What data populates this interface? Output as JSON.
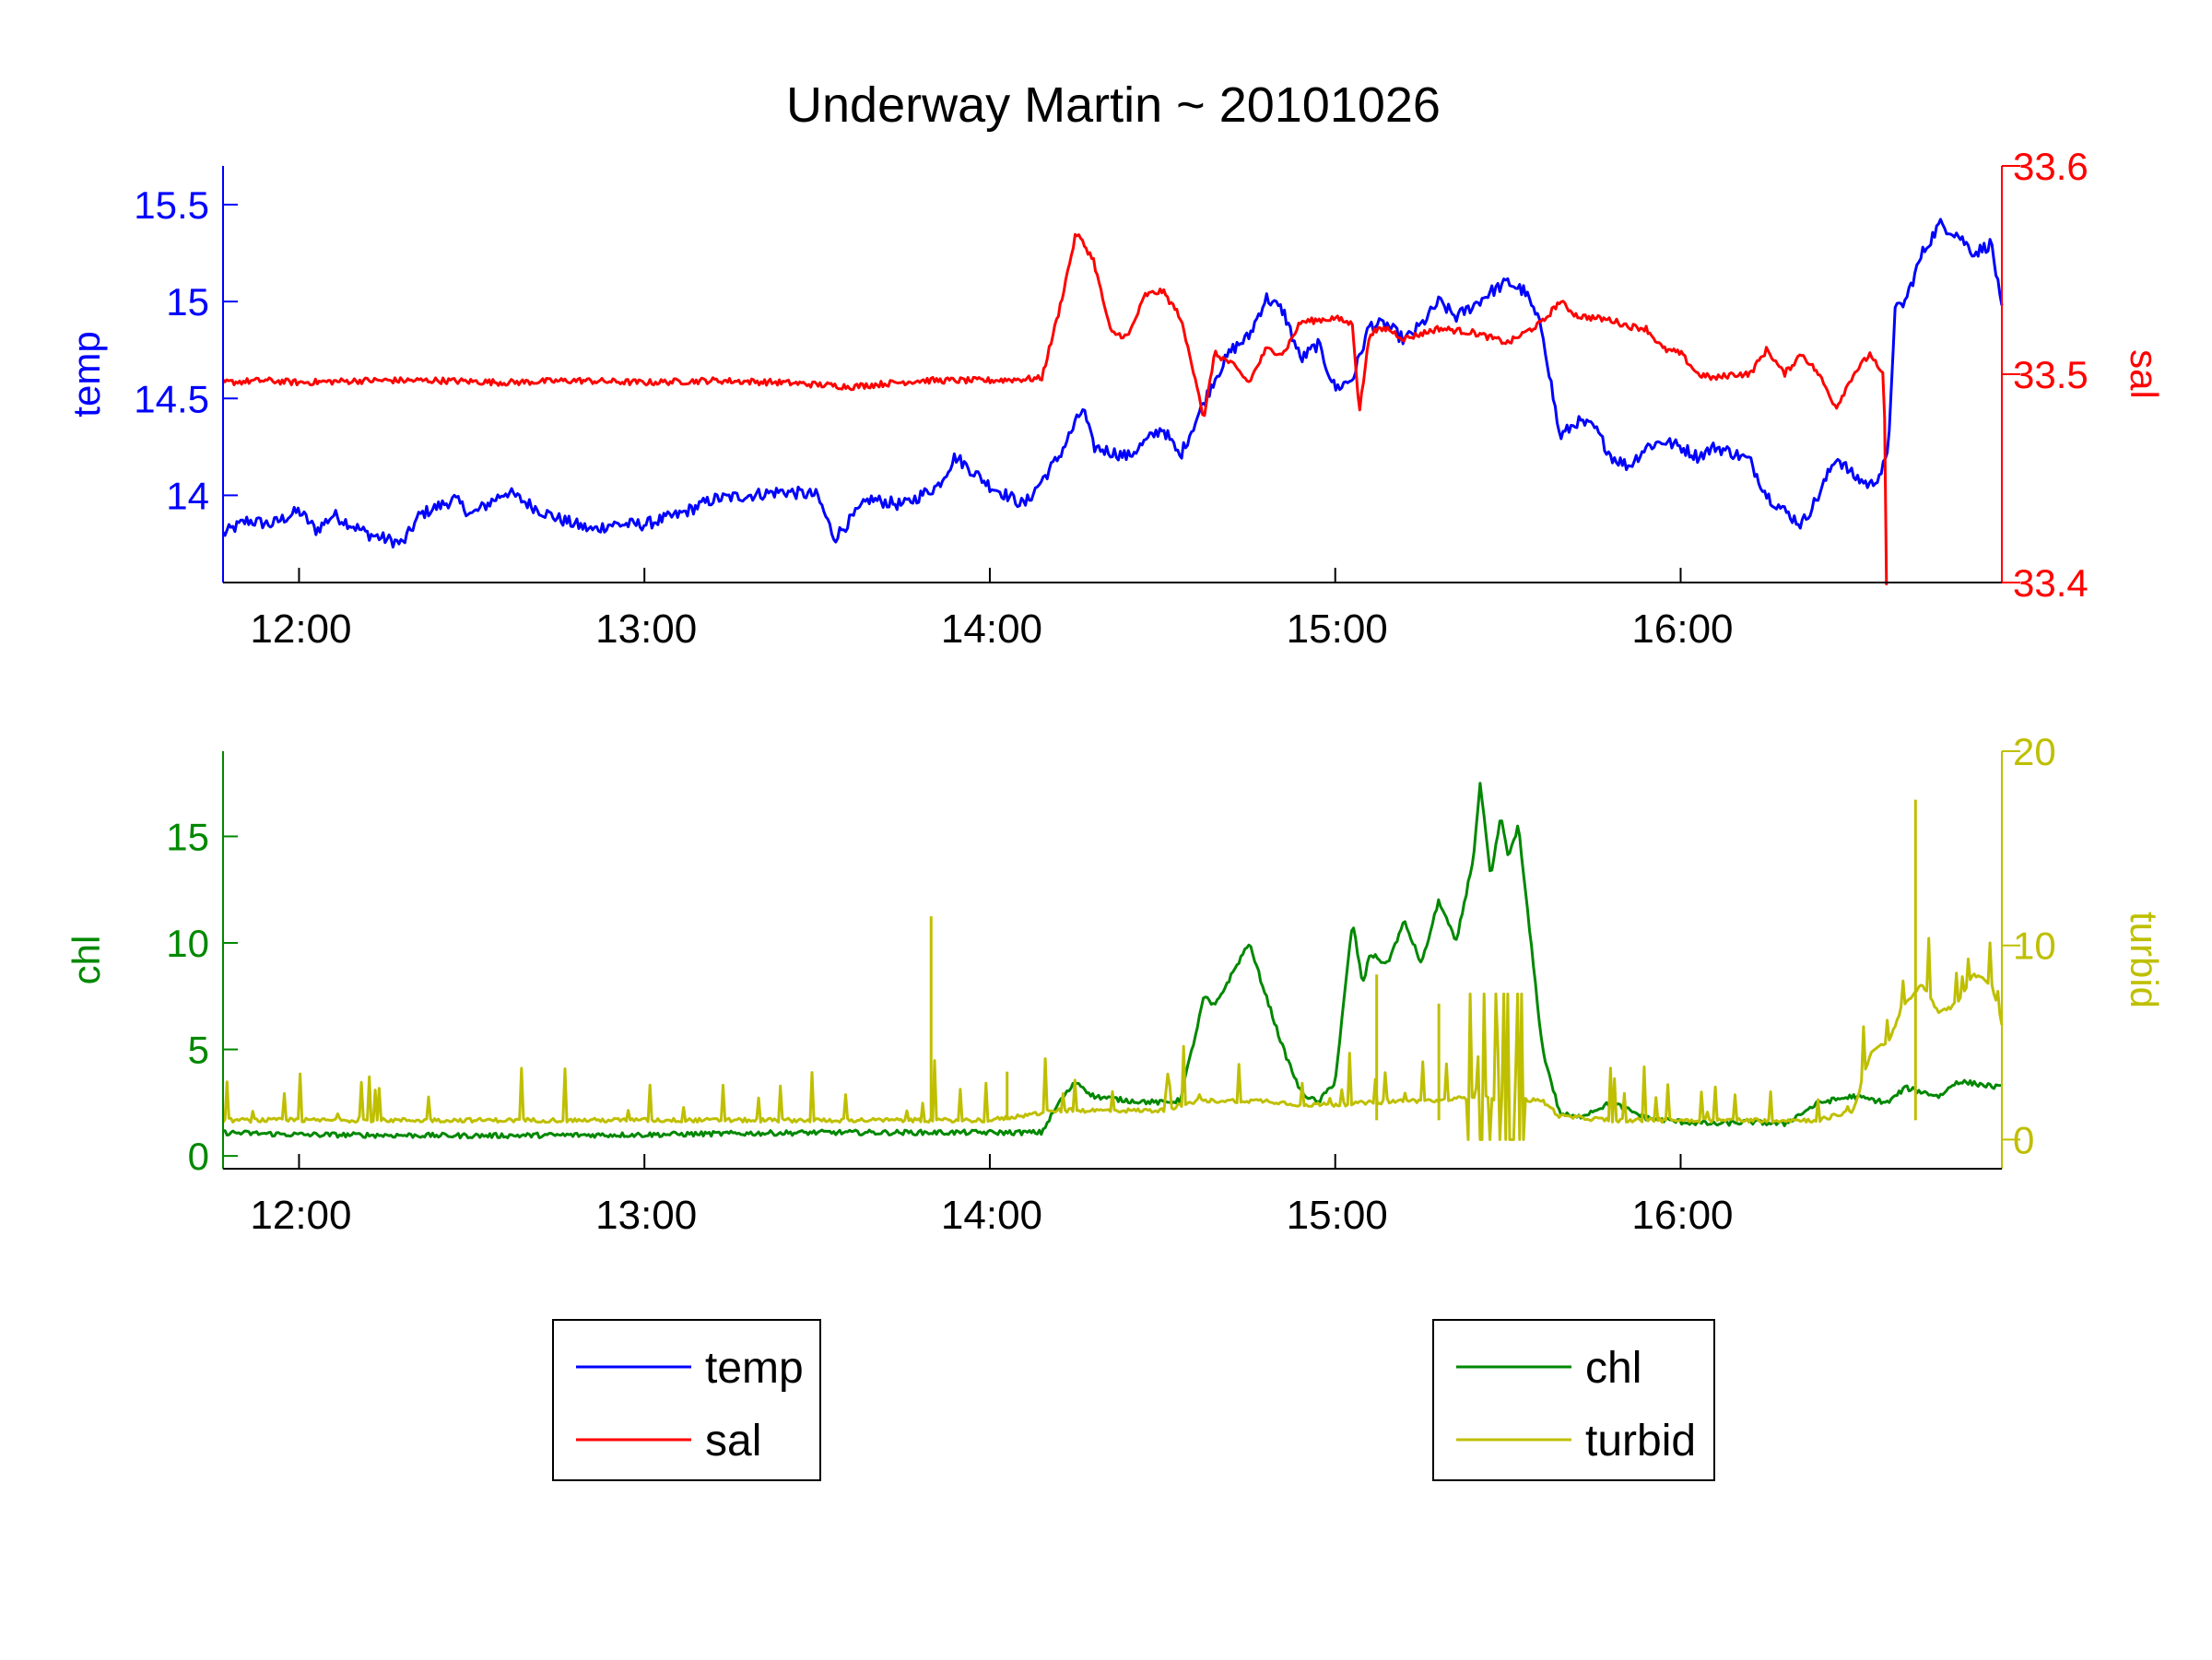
{
  "figure": {
    "title": "Underway Martin ~ 20101026"
  },
  "chart_data": [
    {
      "type": "line",
      "x_tick_labels": [
        "12:00",
        "13:00",
        "14:00",
        "15:00",
        "16:00"
      ],
      "x_ticks": [
        12.0,
        13.0,
        14.0,
        15.0,
        16.0
      ],
      "xlim": [
        11.78,
        16.93
      ],
      "left_axis": {
        "label": "temp",
        "color": "#0000ff",
        "ylim": [
          13.55,
          15.7
        ],
        "ticks": [
          14,
          14.5,
          15,
          15.5
        ],
        "tick_labels": [
          "14",
          "14.5",
          "15",
          "15.5"
        ]
      },
      "right_axis": {
        "label": "sal",
        "color": "#ff0000",
        "ylim": [
          33.4,
          33.6
        ],
        "ticks": [
          33.4,
          33.5,
          33.6
        ],
        "tick_labels": [
          "33.4",
          "33.5",
          "33.6"
        ]
      },
      "series": [
        {
          "name": "temp",
          "axis": "left",
          "color": "#0000ff",
          "x": [
            11.78,
            11.85,
            11.92,
            12.0,
            12.05,
            12.1,
            12.2,
            12.3,
            12.35,
            12.45,
            12.5,
            12.6,
            12.7,
            12.75,
            12.85,
            12.9,
            13.0,
            13.1,
            13.2,
            13.3,
            13.4,
            13.5,
            13.55,
            13.65,
            13.75,
            13.85,
            13.9,
            14.0,
            14.1,
            14.2,
            14.27,
            14.3,
            14.4,
            14.5,
            14.55,
            14.6,
            14.65,
            14.7,
            14.75,
            14.8,
            14.85,
            14.9,
            14.95,
            15.0,
            15.05,
            15.1,
            15.15,
            15.2,
            15.25,
            15.3,
            15.35,
            15.4,
            15.45,
            15.5,
            15.55,
            15.6,
            15.65,
            15.7,
            15.75,
            15.8,
            15.85,
            15.9,
            15.95,
            16.0,
            16.05,
            16.1,
            16.15,
            16.2,
            16.25,
            16.3,
            16.35,
            16.4,
            16.45,
            16.5,
            16.55,
            16.58,
            16.6,
            16.62,
            16.65,
            16.7,
            16.75,
            16.8,
            16.85,
            16.9,
            16.93
          ],
          "values": [
            13.8,
            13.87,
            13.85,
            13.92,
            13.82,
            13.9,
            13.8,
            13.75,
            13.9,
            13.98,
            13.9,
            14.02,
            13.92,
            13.88,
            13.82,
            13.85,
            13.85,
            13.9,
            13.98,
            14.0,
            14.02,
            14.0,
            13.78,
            13.98,
            13.95,
            14.05,
            14.2,
            14.05,
            13.95,
            14.2,
            14.45,
            14.25,
            14.2,
            14.35,
            14.2,
            14.4,
            14.6,
            14.75,
            14.82,
            15.02,
            14.95,
            14.7,
            14.78,
            14.55,
            14.6,
            14.88,
            14.88,
            14.8,
            14.88,
            15.0,
            14.92,
            14.98,
            15.05,
            15.1,
            15.05,
            14.85,
            14.3,
            14.38,
            14.35,
            14.2,
            14.15,
            14.25,
            14.28,
            14.25,
            14.2,
            14.25,
            14.22,
            14.18,
            14.0,
            13.92,
            13.85,
            14.0,
            14.2,
            14.1,
            14.05,
            14.12,
            14.2,
            14.95,
            15.0,
            15.25,
            15.4,
            15.35,
            15.25,
            15.3,
            14.95
          ]
        },
        {
          "name": "sal",
          "axis": "right",
          "color": "#ff0000",
          "x": [
            11.78,
            11.9,
            12.0,
            12.2,
            12.4,
            12.6,
            12.8,
            13.0,
            13.2,
            13.4,
            13.6,
            13.8,
            14.0,
            14.15,
            14.2,
            14.25,
            14.3,
            14.35,
            14.4,
            14.45,
            14.5,
            14.55,
            14.6,
            14.62,
            14.65,
            14.7,
            14.75,
            14.8,
            14.85,
            14.9,
            14.95,
            15.0,
            15.05,
            15.07,
            15.1,
            15.15,
            15.2,
            15.3,
            15.4,
            15.5,
            15.6,
            15.65,
            15.7,
            15.8,
            15.85,
            15.9,
            15.95,
            16.0,
            16.05,
            16.1,
            16.15,
            16.2,
            16.25,
            16.3,
            16.35,
            16.4,
            16.45,
            16.5,
            16.55,
            16.58,
            16.59,
            16.593,
            16.596
          ],
          "values": [
            33.496,
            33.497,
            33.496,
            33.497,
            33.497,
            33.496,
            33.497,
            33.496,
            33.497,
            33.496,
            33.494,
            33.497,
            33.497,
            33.498,
            33.53,
            33.568,
            33.555,
            33.52,
            33.518,
            33.538,
            33.54,
            33.528,
            33.495,
            33.478,
            33.51,
            33.505,
            33.496,
            33.512,
            33.51,
            33.525,
            33.526,
            33.527,
            33.524,
            33.482,
            33.52,
            33.522,
            33.517,
            33.522,
            33.52,
            33.515,
            33.525,
            33.535,
            33.528,
            33.526,
            33.523,
            33.522,
            33.512,
            33.51,
            33.5,
            33.498,
            33.5,
            33.5,
            33.512,
            33.5,
            33.51,
            33.5,
            33.484,
            33.5,
            33.51,
            33.5,
            33.5,
            33.4,
            33.4
          ]
        }
      ]
    },
    {
      "type": "line",
      "x_tick_labels": [
        "12:00",
        "13:00",
        "14:00",
        "15:00",
        "16:00"
      ],
      "x_ticks": [
        12.0,
        13.0,
        14.0,
        15.0,
        16.0
      ],
      "xlim": [
        11.78,
        16.93
      ],
      "left_axis": {
        "label": "chl",
        "color": "#008800",
        "ylim": [
          -0.6,
          19.0
        ],
        "ticks": [
          0,
          5,
          10,
          15
        ],
        "tick_labels": [
          "0",
          "5",
          "10",
          "15"
        ]
      },
      "right_axis": {
        "label": "turbid",
        "color": "#bfbf00",
        "ylim": [
          -1.5,
          20.0
        ],
        "ticks": [
          0,
          10,
          20
        ],
        "tick_labels": [
          "0",
          "10",
          "20"
        ]
      },
      "series": [
        {
          "name": "chl",
          "axis": "left",
          "color": "#008800",
          "x": [
            11.78,
            12.0,
            12.5,
            13.0,
            13.5,
            13.8,
            14.0,
            14.15,
            14.2,
            14.25,
            14.3,
            14.4,
            14.5,
            14.55,
            14.6,
            14.62,
            14.65,
            14.7,
            14.75,
            14.8,
            14.85,
            14.9,
            14.95,
            15.0,
            15.03,
            15.05,
            15.08,
            15.1,
            15.15,
            15.2,
            15.25,
            15.3,
            15.35,
            15.4,
            15.42,
            15.45,
            15.48,
            15.5,
            15.53,
            15.56,
            15.6,
            15.65,
            15.7,
            15.8,
            15.9,
            16.0,
            16.1,
            16.2,
            16.3,
            16.4,
            16.5,
            16.6,
            16.65,
            16.7,
            16.75,
            16.8,
            16.85,
            16.93
          ],
          "values": [
            1.1,
            1.0,
            0.95,
            1.0,
            1.1,
            1.1,
            1.1,
            1.1,
            2.5,
            3.5,
            2.8,
            2.6,
            2.5,
            2.6,
            6.0,
            7.5,
            7.0,
            8.5,
            10.0,
            7.5,
            5.0,
            3.0,
            2.5,
            3.5,
            8.0,
            11.0,
            8.0,
            9.5,
            9.0,
            11.0,
            9.0,
            12.0,
            10.0,
            14.0,
            17.5,
            13.0,
            16.0,
            14.0,
            15.5,
            11.0,
            5.0,
            2.0,
            1.8,
            2.5,
            1.8,
            1.6,
            1.5,
            1.6,
            1.5,
            2.5,
            2.8,
            2.5,
            3.2,
            3.0,
            2.8,
            3.5,
            3.4,
            3.2
          ]
        },
        {
          "name": "turbid",
          "axis": "right",
          "color": "#bfbf00",
          "x": [
            11.78,
            12.0,
            12.5,
            13.0,
            13.5,
            14.0,
            14.2,
            14.5,
            14.6,
            14.8,
            14.9,
            15.0,
            15.2,
            15.3,
            15.4,
            15.6,
            15.65,
            15.8,
            16.0,
            16.2,
            16.4,
            16.5,
            16.55,
            16.6,
            16.65,
            16.7,
            16.75,
            16.8,
            16.85,
            16.9,
            16.93
          ],
          "values": [
            1.0,
            1.0,
            1.0,
            1.0,
            1.0,
            1.0,
            1.5,
            1.5,
            2.0,
            2.0,
            1.8,
            1.8,
            2.0,
            2.0,
            2.2,
            2.0,
            1.2,
            1.0,
            1.0,
            1.0,
            1.0,
            1.5,
            4.5,
            5.0,
            7.0,
            8.0,
            6.5,
            7.0,
            8.5,
            8.0,
            6.0
          ]
        }
      ]
    }
  ],
  "legends": [
    {
      "entries": [
        {
          "label": "temp",
          "color": "#0000ff"
        },
        {
          "label": "sal",
          "color": "#ff0000"
        }
      ]
    },
    {
      "entries": [
        {
          "label": "chl",
          "color": "#008800"
        },
        {
          "label": "turbid",
          "color": "#bfbf00"
        }
      ]
    }
  ]
}
